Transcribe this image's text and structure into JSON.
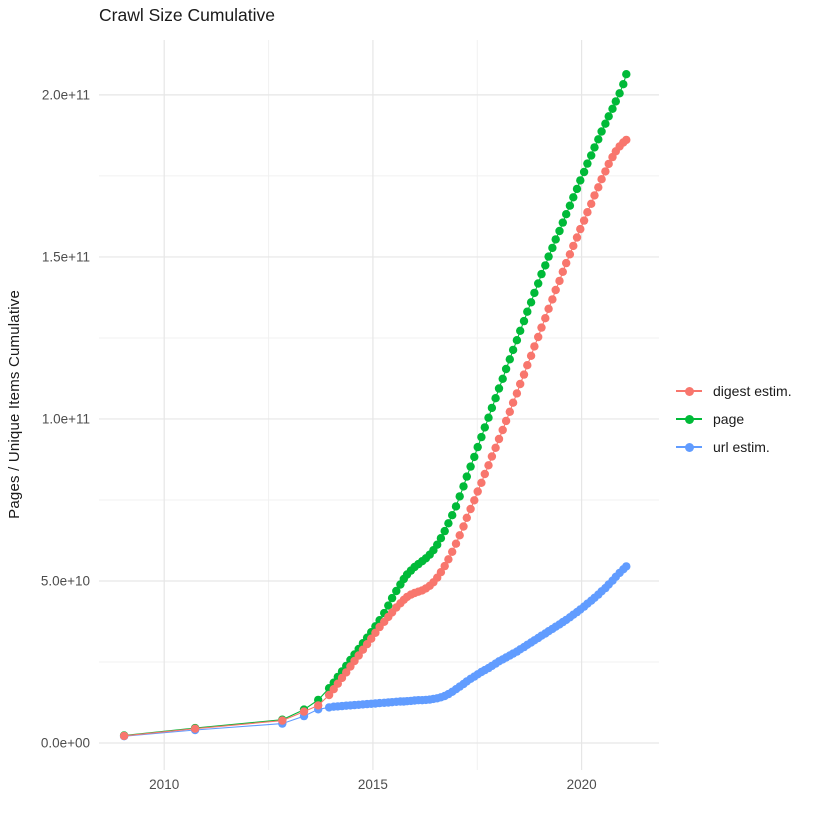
{
  "title": "Crawl Size Cumulative",
  "y_axis": {
    "label": "Pages / Unique Items Cumulative",
    "ticks": [
      {
        "label": "0.0e+00",
        "v": 0
      },
      {
        "label": "5.0e+10",
        "v": 50
      },
      {
        "label": "1.0e+11",
        "v": 100
      },
      {
        "label": "1.5e+11",
        "v": 150
      },
      {
        "label": "2.0e+11",
        "v": 200
      }
    ]
  },
  "x_axis": {
    "ticks": [
      {
        "label": "2010",
        "v": 2010
      },
      {
        "label": "2015",
        "v": 2015
      },
      {
        "label": "2020",
        "v": 2020
      }
    ]
  },
  "legend": {
    "items": [
      {
        "label": "digest estim.",
        "color": "#F8766D"
      },
      {
        "label": "page",
        "color": "#00BA38"
      },
      {
        "label": "url estim.",
        "color": "#619CFF"
      }
    ]
  },
  "colors": {
    "background": "#FFFFFF",
    "grid_major": "#E6E6E6",
    "grid_minor": "#F1F1F1",
    "tick_text": "#4D4D4D",
    "digest": "#F8766D",
    "page": "#00BA38",
    "url": "#619CFF"
  },
  "chart_data": {
    "type": "line",
    "title": "Crawl Size Cumulative",
    "xlabel": "",
    "ylabel": "Pages / Unique Items Cumulative",
    "x_unit": "year (crawl date)",
    "y_unit": "items, billions (1e9); axis shown in scientific notation",
    "xlim": [
      2008.4,
      2021.9
    ],
    "ylim_e9": [
      -9,
      218
    ],
    "grid": true,
    "legend_position": "right",
    "x_minor_gridlines": [
      2012.5,
      2017.5
    ],
    "y_minor_gridlines_e9": [
      25,
      75,
      125,
      175
    ],
    "plot_order": [
      "page",
      "url estim.",
      "digest estim."
    ],
    "series": [
      {
        "name": "digest estim.",
        "color": "#F8766D",
        "points": [
          [
            2009.04,
            2.2
          ],
          [
            2010.74,
            4.4
          ],
          [
            2012.83,
            6.9
          ],
          [
            2013.35,
            9.7
          ],
          [
            2013.69,
            11.6
          ],
          [
            2013.95,
            14.8
          ],
          [
            2014.06,
            16.6
          ],
          [
            2014.16,
            18.3
          ],
          [
            2014.26,
            20.1
          ],
          [
            2014.36,
            21.8
          ],
          [
            2014.46,
            23.6
          ],
          [
            2014.56,
            25.3
          ],
          [
            2014.66,
            27.0
          ],
          [
            2014.76,
            28.8
          ],
          [
            2014.86,
            30.5
          ],
          [
            2014.96,
            32.2
          ],
          [
            2015.06,
            34.0
          ],
          [
            2015.16,
            35.8
          ],
          [
            2015.27,
            37.4
          ],
          [
            2015.37,
            38.9
          ],
          [
            2015.46,
            40.3
          ],
          [
            2015.56,
            41.8
          ],
          [
            2015.66,
            43.1
          ],
          [
            2015.74,
            44.2
          ],
          [
            2015.82,
            45.1
          ],
          [
            2015.91,
            45.8
          ],
          [
            2016.0,
            46.3
          ],
          [
            2016.09,
            46.7
          ],
          [
            2016.18,
            47.1
          ],
          [
            2016.27,
            47.7
          ],
          [
            2016.36,
            48.5
          ],
          [
            2016.45,
            49.6
          ],
          [
            2016.54,
            51.0
          ],
          [
            2016.63,
            52.7
          ],
          [
            2016.72,
            54.6
          ],
          [
            2016.81,
            56.7
          ],
          [
            2016.9,
            59.0
          ],
          [
            2016.99,
            61.5
          ],
          [
            2017.08,
            64.1
          ],
          [
            2017.17,
            66.8
          ],
          [
            2017.25,
            69.5
          ],
          [
            2017.34,
            72.2
          ],
          [
            2017.43,
            74.9
          ],
          [
            2017.51,
            77.6
          ],
          [
            2017.6,
            80.3
          ],
          [
            2017.68,
            83.0
          ],
          [
            2017.77,
            85.7
          ],
          [
            2017.85,
            88.4
          ],
          [
            2017.94,
            91.1
          ],
          [
            2018.02,
            93.8
          ],
          [
            2018.11,
            96.6
          ],
          [
            2018.19,
            99.4
          ],
          [
            2018.28,
            102.2
          ],
          [
            2018.36,
            105.0
          ],
          [
            2018.45,
            107.9
          ],
          [
            2018.53,
            110.8
          ],
          [
            2018.62,
            113.7
          ],
          [
            2018.7,
            116.6
          ],
          [
            2018.79,
            119.5
          ],
          [
            2018.87,
            122.4
          ],
          [
            2018.96,
            125.3
          ],
          [
            2019.04,
            128.2
          ],
          [
            2019.13,
            131.1
          ],
          [
            2019.21,
            134.0
          ],
          [
            2019.3,
            136.9
          ],
          [
            2019.38,
            139.8
          ],
          [
            2019.47,
            142.6
          ],
          [
            2019.55,
            145.4
          ],
          [
            2019.63,
            148.1
          ],
          [
            2019.72,
            150.8
          ],
          [
            2019.8,
            153.4
          ],
          [
            2019.89,
            156.0
          ],
          [
            2019.97,
            158.6
          ],
          [
            2020.06,
            161.2
          ],
          [
            2020.14,
            163.8
          ],
          [
            2020.23,
            166.4
          ],
          [
            2020.31,
            169.0
          ],
          [
            2020.4,
            171.5
          ],
          [
            2020.48,
            174.0
          ],
          [
            2020.57,
            176.4
          ],
          [
            2020.65,
            178.7
          ],
          [
            2020.74,
            180.8
          ],
          [
            2020.82,
            182.6
          ],
          [
            2020.91,
            184.1
          ],
          [
            2021.0,
            185.3
          ],
          [
            2021.07,
            186.1
          ]
        ]
      },
      {
        "name": "page",
        "color": "#00BA38",
        "points": [
          [
            2009.04,
            2.3
          ],
          [
            2010.74,
            4.6
          ],
          [
            2012.83,
            7.2
          ],
          [
            2013.35,
            10.3
          ],
          [
            2013.69,
            13.3
          ],
          [
            2013.95,
            16.9
          ],
          [
            2014.06,
            18.6
          ],
          [
            2014.16,
            20.4
          ],
          [
            2014.26,
            22.1
          ],
          [
            2014.36,
            23.8
          ],
          [
            2014.46,
            25.6
          ],
          [
            2014.56,
            27.3
          ],
          [
            2014.66,
            29.0
          ],
          [
            2014.76,
            30.8
          ],
          [
            2014.86,
            32.5
          ],
          [
            2014.96,
            34.2
          ],
          [
            2015.06,
            36.0
          ],
          [
            2015.16,
            37.9
          ],
          [
            2015.27,
            40.1
          ],
          [
            2015.37,
            42.4
          ],
          [
            2015.46,
            44.7
          ],
          [
            2015.56,
            46.9
          ],
          [
            2015.66,
            48.9
          ],
          [
            2015.74,
            50.6
          ],
          [
            2015.82,
            52.0
          ],
          [
            2015.91,
            53.2
          ],
          [
            2016.0,
            54.3
          ],
          [
            2016.09,
            55.2
          ],
          [
            2016.18,
            56.1
          ],
          [
            2016.27,
            57.0
          ],
          [
            2016.36,
            58.1
          ],
          [
            2016.45,
            59.5
          ],
          [
            2016.54,
            61.2
          ],
          [
            2016.63,
            63.2
          ],
          [
            2016.72,
            65.4
          ],
          [
            2016.81,
            67.8
          ],
          [
            2016.9,
            70.3
          ],
          [
            2016.99,
            73.0
          ],
          [
            2017.08,
            76.1
          ],
          [
            2017.17,
            79.2
          ],
          [
            2017.25,
            82.2
          ],
          [
            2017.34,
            85.3
          ],
          [
            2017.43,
            88.3
          ],
          [
            2017.51,
            91.3
          ],
          [
            2017.6,
            94.4
          ],
          [
            2017.68,
            97.4
          ],
          [
            2017.77,
            100.4
          ],
          [
            2017.85,
            103.4
          ],
          [
            2017.94,
            106.4
          ],
          [
            2018.02,
            109.4
          ],
          [
            2018.11,
            112.4
          ],
          [
            2018.19,
            115.4
          ],
          [
            2018.28,
            118.4
          ],
          [
            2018.36,
            121.3
          ],
          [
            2018.45,
            124.3
          ],
          [
            2018.53,
            127.2
          ],
          [
            2018.62,
            130.2
          ],
          [
            2018.7,
            133.1
          ],
          [
            2018.79,
            136.0
          ],
          [
            2018.87,
            138.9
          ],
          [
            2018.96,
            141.8
          ],
          [
            2019.04,
            144.7
          ],
          [
            2019.13,
            147.4
          ],
          [
            2019.21,
            150.1
          ],
          [
            2019.3,
            152.8
          ],
          [
            2019.38,
            155.4
          ],
          [
            2019.47,
            158.0
          ],
          [
            2019.55,
            160.6
          ],
          [
            2019.63,
            163.2
          ],
          [
            2019.72,
            165.8
          ],
          [
            2019.8,
            168.4
          ],
          [
            2019.89,
            171.0
          ],
          [
            2019.97,
            173.6
          ],
          [
            2020.06,
            176.2
          ],
          [
            2020.14,
            178.8
          ],
          [
            2020.23,
            181.3
          ],
          [
            2020.31,
            183.8
          ],
          [
            2020.4,
            186.3
          ],
          [
            2020.48,
            188.7
          ],
          [
            2020.57,
            191.1
          ],
          [
            2020.65,
            193.4
          ],
          [
            2020.74,
            195.7
          ],
          [
            2020.82,
            198.0
          ],
          [
            2020.91,
            200.5
          ],
          [
            2021.0,
            203.3
          ],
          [
            2021.07,
            206.4
          ]
        ]
      },
      {
        "name": "url estim.",
        "color": "#619CFF",
        "points": [
          [
            2009.04,
            2.1
          ],
          [
            2010.74,
            4.0
          ],
          [
            2012.83,
            6.0
          ],
          [
            2013.35,
            8.3
          ],
          [
            2013.69,
            10.4
          ],
          [
            2013.95,
            11.0
          ],
          [
            2014.06,
            11.2
          ],
          [
            2014.16,
            11.3
          ],
          [
            2014.26,
            11.4
          ],
          [
            2014.36,
            11.5
          ],
          [
            2014.46,
            11.6
          ],
          [
            2014.56,
            11.7
          ],
          [
            2014.66,
            11.8
          ],
          [
            2014.76,
            11.9
          ],
          [
            2014.86,
            12.0
          ],
          [
            2014.96,
            12.1
          ],
          [
            2015.06,
            12.2
          ],
          [
            2015.16,
            12.3
          ],
          [
            2015.27,
            12.4
          ],
          [
            2015.37,
            12.5
          ],
          [
            2015.46,
            12.6
          ],
          [
            2015.56,
            12.7
          ],
          [
            2015.66,
            12.8
          ],
          [
            2015.74,
            12.8
          ],
          [
            2015.82,
            12.9
          ],
          [
            2015.91,
            13.0
          ],
          [
            2016.0,
            13.1
          ],
          [
            2016.09,
            13.2
          ],
          [
            2016.18,
            13.2
          ],
          [
            2016.27,
            13.3
          ],
          [
            2016.36,
            13.4
          ],
          [
            2016.45,
            13.6
          ],
          [
            2016.54,
            13.8
          ],
          [
            2016.63,
            14.1
          ],
          [
            2016.72,
            14.5
          ],
          [
            2016.81,
            15.1
          ],
          [
            2016.9,
            15.8
          ],
          [
            2016.99,
            16.6
          ],
          [
            2017.08,
            17.4
          ],
          [
            2017.17,
            18.2
          ],
          [
            2017.25,
            19.0
          ],
          [
            2017.34,
            19.8
          ],
          [
            2017.43,
            20.5
          ],
          [
            2017.51,
            21.2
          ],
          [
            2017.6,
            21.9
          ],
          [
            2017.68,
            22.5
          ],
          [
            2017.77,
            23.1
          ],
          [
            2017.85,
            23.8
          ],
          [
            2017.94,
            24.5
          ],
          [
            2018.02,
            25.2
          ],
          [
            2018.11,
            25.8
          ],
          [
            2018.19,
            26.4
          ],
          [
            2018.28,
            27.0
          ],
          [
            2018.36,
            27.6
          ],
          [
            2018.45,
            28.2
          ],
          [
            2018.53,
            28.9
          ],
          [
            2018.62,
            29.6
          ],
          [
            2018.7,
            30.3
          ],
          [
            2018.79,
            31.0
          ],
          [
            2018.87,
            31.7
          ],
          [
            2018.96,
            32.4
          ],
          [
            2019.04,
            33.1
          ],
          [
            2019.13,
            33.8
          ],
          [
            2019.21,
            34.5
          ],
          [
            2019.3,
            35.2
          ],
          [
            2019.38,
            35.9
          ],
          [
            2019.47,
            36.6
          ],
          [
            2019.55,
            37.3
          ],
          [
            2019.63,
            38.0
          ],
          [
            2019.72,
            38.8
          ],
          [
            2019.8,
            39.6
          ],
          [
            2019.89,
            40.4
          ],
          [
            2019.97,
            41.2
          ],
          [
            2020.06,
            42.1
          ],
          [
            2020.14,
            43.0
          ],
          [
            2020.23,
            43.9
          ],
          [
            2020.31,
            44.8
          ],
          [
            2020.4,
            45.8
          ],
          [
            2020.48,
            46.8
          ],
          [
            2020.57,
            47.8
          ],
          [
            2020.65,
            48.9
          ],
          [
            2020.74,
            50.1
          ],
          [
            2020.82,
            51.3
          ],
          [
            2020.91,
            52.5
          ],
          [
            2021.0,
            53.6
          ],
          [
            2021.07,
            54.5
          ]
        ]
      }
    ]
  }
}
